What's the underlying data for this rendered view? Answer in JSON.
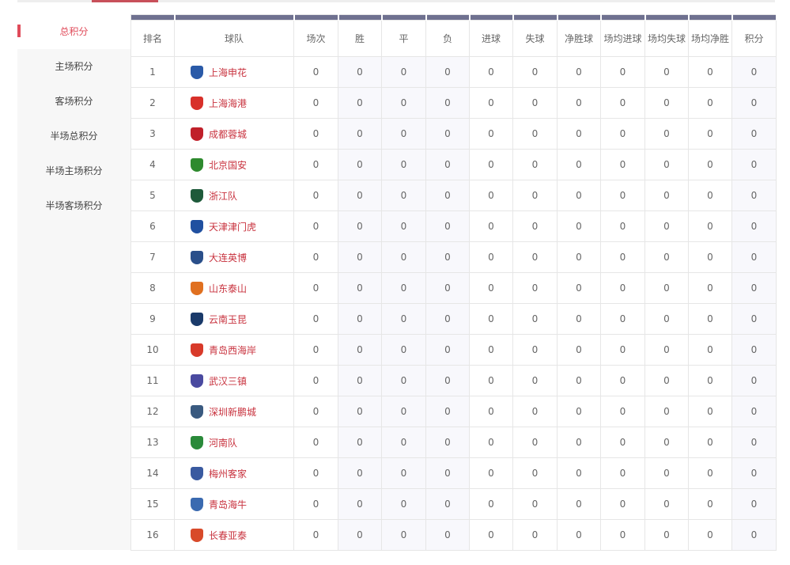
{
  "sidebar": {
    "items": [
      {
        "label": "总积分",
        "active": true
      },
      {
        "label": "主场积分"
      },
      {
        "label": "客场积分"
      },
      {
        "label": "半场总积分"
      },
      {
        "label": "半场主场积分"
      },
      {
        "label": "半场客场积分"
      }
    ]
  },
  "table": {
    "headers": [
      "排名",
      "球队",
      "场次",
      "胜",
      "平",
      "负",
      "进球",
      "失球",
      "净胜球",
      "场均进球",
      "场均失球",
      "场均净胜",
      "积分"
    ],
    "rows": [
      {
        "rank": "1",
        "team": "上海申花",
        "logo_color": "#2a5aa8",
        "stats": [
          "0",
          "0",
          "0",
          "0",
          "0",
          "0",
          "0",
          "0",
          "0",
          "0",
          "0"
        ]
      },
      {
        "rank": "2",
        "team": "上海海港",
        "logo_color": "#d8302a",
        "stats": [
          "0",
          "0",
          "0",
          "0",
          "0",
          "0",
          "0",
          "0",
          "0",
          "0",
          "0"
        ]
      },
      {
        "rank": "3",
        "team": "成都蓉城",
        "logo_color": "#c0202a",
        "stats": [
          "0",
          "0",
          "0",
          "0",
          "0",
          "0",
          "0",
          "0",
          "0",
          "0",
          "0"
        ]
      },
      {
        "rank": "4",
        "team": "北京国安",
        "logo_color": "#2e8a2e",
        "stats": [
          "0",
          "0",
          "0",
          "0",
          "0",
          "0",
          "0",
          "0",
          "0",
          "0",
          "0"
        ]
      },
      {
        "rank": "5",
        "team": "浙江队",
        "logo_color": "#1e5a3a",
        "stats": [
          "0",
          "0",
          "0",
          "0",
          "0",
          "0",
          "0",
          "0",
          "0",
          "0",
          "0"
        ]
      },
      {
        "rank": "6",
        "team": "天津津门虎",
        "logo_color": "#2050a0",
        "stats": [
          "0",
          "0",
          "0",
          "0",
          "0",
          "0",
          "0",
          "0",
          "0",
          "0",
          "0"
        ]
      },
      {
        "rank": "7",
        "team": "大连英博",
        "logo_color": "#2a4f8a",
        "stats": [
          "0",
          "0",
          "0",
          "0",
          "0",
          "0",
          "0",
          "0",
          "0",
          "0",
          "0"
        ]
      },
      {
        "rank": "8",
        "team": "山东泰山",
        "logo_color": "#e07020",
        "stats": [
          "0",
          "0",
          "0",
          "0",
          "0",
          "0",
          "0",
          "0",
          "0",
          "0",
          "0"
        ]
      },
      {
        "rank": "9",
        "team": "云南玉昆",
        "logo_color": "#1a3a6a",
        "stats": [
          "0",
          "0",
          "0",
          "0",
          "0",
          "0",
          "0",
          "0",
          "0",
          "0",
          "0"
        ]
      },
      {
        "rank": "10",
        "team": "青岛西海岸",
        "logo_color": "#d83a2a",
        "stats": [
          "0",
          "0",
          "0",
          "0",
          "0",
          "0",
          "0",
          "0",
          "0",
          "0",
          "0"
        ]
      },
      {
        "rank": "11",
        "team": "武汉三镇",
        "logo_color": "#4a4aa0",
        "stats": [
          "0",
          "0",
          "0",
          "0",
          "0",
          "0",
          "0",
          "0",
          "0",
          "0",
          "0"
        ]
      },
      {
        "rank": "12",
        "team": "深圳新鹏城",
        "logo_color": "#3a5a80",
        "stats": [
          "0",
          "0",
          "0",
          "0",
          "0",
          "0",
          "0",
          "0",
          "0",
          "0",
          "0"
        ]
      },
      {
        "rank": "13",
        "team": "河南队",
        "logo_color": "#2a8a3a",
        "stats": [
          "0",
          "0",
          "0",
          "0",
          "0",
          "0",
          "0",
          "0",
          "0",
          "0",
          "0"
        ]
      },
      {
        "rank": "14",
        "team": "梅州客家",
        "logo_color": "#3a5aa0",
        "stats": [
          "0",
          "0",
          "0",
          "0",
          "0",
          "0",
          "0",
          "0",
          "0",
          "0",
          "0"
        ]
      },
      {
        "rank": "15",
        "team": "青岛海牛",
        "logo_color": "#3a6ab0",
        "stats": [
          "0",
          "0",
          "0",
          "0",
          "0",
          "0",
          "0",
          "0",
          "0",
          "0",
          "0"
        ]
      },
      {
        "rank": "16",
        "team": "长春亚泰",
        "logo_color": "#d84a2a",
        "stats": [
          "0",
          "0",
          "0",
          "0",
          "0",
          "0",
          "0",
          "0",
          "0",
          "0",
          "0"
        ]
      }
    ]
  }
}
